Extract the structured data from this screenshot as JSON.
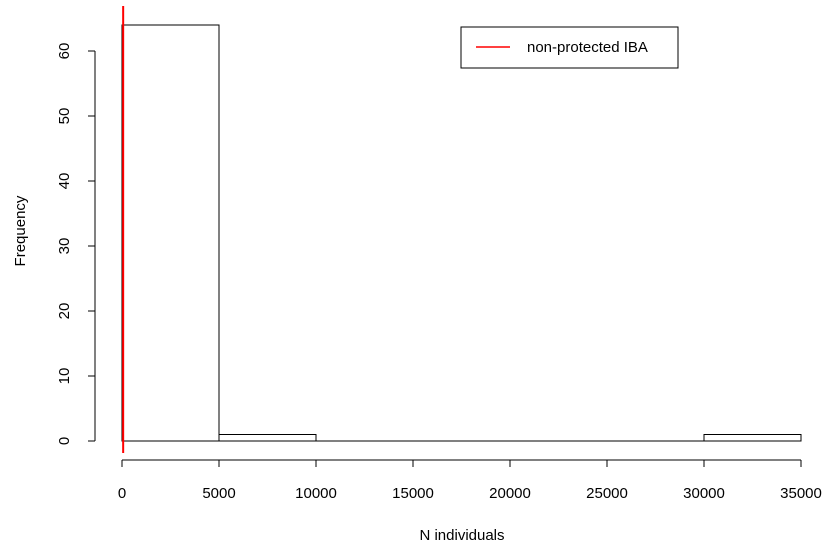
{
  "chart_data": {
    "type": "bar",
    "title": "",
    "xlabel": "N individuals",
    "ylabel": "Frequency",
    "bins": [
      {
        "x0": 0,
        "x1": 5000,
        "count": 64
      },
      {
        "x0": 5000,
        "x1": 10000,
        "count": 1
      },
      {
        "x0": 10000,
        "x1": 15000,
        "count": 0
      },
      {
        "x0": 15000,
        "x1": 20000,
        "count": 0
      },
      {
        "x0": 20000,
        "x1": 25000,
        "count": 0
      },
      {
        "x0": 25000,
        "x1": 30000,
        "count": 0
      },
      {
        "x0": 30000,
        "x1": 35000,
        "count": 1
      }
    ],
    "xlim": [
      0,
      35000
    ],
    "ylim": [
      0,
      64
    ],
    "x_ticks": [
      0,
      5000,
      10000,
      15000,
      20000,
      25000,
      30000,
      35000
    ],
    "x_tick_labels": [
      "0",
      "5000",
      "10000",
      "15000",
      "20000",
      "25000",
      "30000",
      "35000"
    ],
    "y_ticks": [
      0,
      10,
      20,
      30,
      40,
      50,
      60
    ],
    "y_tick_labels": [
      "0",
      "10",
      "20",
      "30",
      "40",
      "50",
      "60"
    ],
    "reference_line": {
      "name": "non-protected IBA",
      "x": 60,
      "color": "#ff0000"
    },
    "legend": {
      "position": "top-right",
      "entries": [
        {
          "label": "non-protected IBA",
          "color": "#ff0000"
        }
      ]
    },
    "bar_fill": "#ffffff",
    "bar_stroke": "#000000",
    "grid": false
  }
}
